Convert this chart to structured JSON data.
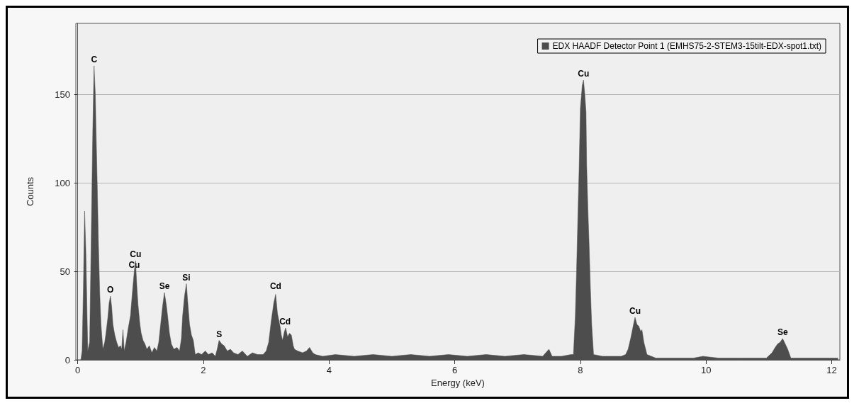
{
  "chart_data": {
    "type": "area",
    "xlabel": "Energy (keV)",
    "ylabel": "Counts",
    "xlim": [
      -0.03,
      12.13
    ],
    "xticks": [
      0,
      2,
      4,
      6,
      8,
      10,
      12
    ],
    "ylim": [
      0,
      190
    ],
    "yticks": [
      0,
      50,
      100,
      150
    ],
    "grid": "y",
    "legend": "top right",
    "marker": "none",
    "series": [
      {
        "name": "EDX HAADF Detector Point 1 (EMHS75-2-STEM3-15tilt-EDX-spot1.txt)",
        "color": "#4d4d4d",
        "x": [
          0.05,
          0.07,
          0.09,
          0.11,
          0.13,
          0.16,
          0.19,
          0.22,
          0.24,
          0.26,
          0.28,
          0.29,
          0.31,
          0.33,
          0.35,
          0.37,
          0.4,
          0.43,
          0.45,
          0.48,
          0.5,
          0.52,
          0.54,
          0.56,
          0.59,
          0.62,
          0.65,
          0.68,
          0.7,
          0.72,
          0.74,
          0.77,
          0.8,
          0.84,
          0.87,
          0.9,
          0.92,
          0.94,
          0.96,
          0.99,
          1.01,
          1.04,
          1.07,
          1.1,
          1.14,
          1.18,
          1.22,
          1.26,
          1.29,
          1.32,
          1.35,
          1.38,
          1.41,
          1.43,
          1.46,
          1.49,
          1.53,
          1.58,
          1.62,
          1.65,
          1.67,
          1.7,
          1.73,
          1.75,
          1.78,
          1.81,
          1.84,
          1.87,
          1.92,
          1.97,
          2.03,
          2.08,
          2.14,
          2.19,
          2.22,
          2.25,
          2.29,
          2.33,
          2.38,
          2.43,
          2.48,
          2.55,
          2.62,
          2.7,
          2.78,
          2.86,
          2.95,
          3.0,
          3.04,
          3.08,
          3.12,
          3.15,
          3.18,
          3.22,
          3.24,
          3.26,
          3.29,
          3.31,
          3.34,
          3.37,
          3.4,
          3.43,
          3.45,
          3.5,
          3.58,
          3.64,
          3.69,
          3.74,
          3.78,
          3.9,
          4.1,
          4.4,
          4.7,
          5.0,
          5.3,
          5.6,
          5.9,
          6.2,
          6.5,
          6.8,
          7.1,
          7.4,
          7.5,
          7.55,
          7.7,
          7.85,
          7.89,
          7.92,
          7.94,
          7.96,
          7.98,
          8.0,
          8.03,
          8.05,
          8.07,
          8.09,
          8.1,
          8.12,
          8.14,
          8.16,
          8.18,
          8.21,
          8.35,
          8.5,
          8.65,
          8.72,
          8.76,
          8.8,
          8.84,
          8.87,
          8.9,
          8.93,
          8.96,
          8.98,
          9.01,
          9.06,
          9.2,
          9.5,
          9.8,
          9.95,
          10.2,
          10.5,
          10.8,
          10.96,
          11.05,
          11.1,
          11.14,
          11.18,
          11.22,
          11.26,
          11.3,
          11.35,
          11.6,
          11.9,
          12.1
        ],
        "values": [
          0,
          5,
          40,
          84,
          60,
          5,
          10,
          81,
          130,
          166,
          150,
          132,
          100,
          65,
          38,
          20,
          6,
          10,
          15,
          24,
          32,
          36,
          30,
          20,
          14,
          10,
          7,
          8,
          6,
          17,
          5,
          10,
          17,
          25,
          38,
          50,
          56,
          42,
          31,
          20,
          15,
          11,
          9,
          6,
          8,
          4,
          7,
          5,
          10,
          20,
          30,
          38,
          31,
          25,
          15,
          9,
          6,
          7,
          5,
          12,
          25,
          36,
          43,
          33,
          20,
          14,
          11,
          3,
          4,
          3,
          5,
          3,
          4,
          2,
          6,
          11,
          9,
          8,
          5,
          6,
          4,
          3,
          5,
          2,
          4,
          3,
          3,
          5,
          10,
          22,
          32,
          37,
          26,
          19,
          14,
          11,
          16,
          18,
          13,
          15,
          14,
          8,
          6,
          5,
          4,
          5,
          7,
          4,
          3,
          2,
          3,
          2,
          3,
          2,
          3,
          2,
          3,
          2,
          3,
          2,
          3,
          2,
          6,
          2,
          2,
          3,
          3,
          25,
          51,
          80,
          108,
          142,
          155,
          158,
          150,
          140,
          110,
          85,
          64,
          40,
          20,
          3,
          2,
          2,
          2,
          3,
          6,
          12,
          19,
          24,
          20,
          19,
          16,
          17,
          10,
          3,
          1,
          1,
          1,
          2,
          1,
          1,
          1,
          1,
          4,
          7,
          9,
          10,
          12,
          9,
          6,
          1,
          1,
          1,
          1
        ]
      }
    ],
    "annotations": [
      {
        "text": "C",
        "x": 0.26,
        "y": 166
      },
      {
        "text": "O",
        "x": 0.52,
        "y": 36
      },
      {
        "text": "Cu",
        "x": 0.9,
        "y": 50
      },
      {
        "text": "Cu",
        "x": 0.92,
        "y": 56
      },
      {
        "text": "Se",
        "x": 1.38,
        "y": 38
      },
      {
        "text": "Si",
        "x": 1.73,
        "y": 43
      },
      {
        "text": "S",
        "x": 2.25,
        "y": 11
      },
      {
        "text": "Cd",
        "x": 3.15,
        "y": 38
      },
      {
        "text": "Cd",
        "x": 3.3,
        "y": 18
      },
      {
        "text": "Cu",
        "x": 8.05,
        "y": 158
      },
      {
        "text": "Cu",
        "x": 8.87,
        "y": 24
      },
      {
        "text": "Se",
        "x": 11.22,
        "y": 12
      }
    ]
  }
}
